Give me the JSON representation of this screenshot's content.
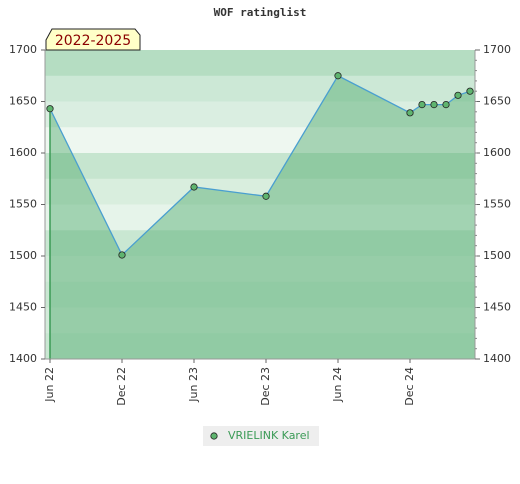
{
  "chart_data": {
    "type": "line",
    "title": "WOF ratinglist",
    "annotation": "2022-2025",
    "x": [
      "2022-06",
      "2022-12",
      "2023-06",
      "2023-12",
      "2024-06",
      "2024-12",
      "2025-01",
      "2025-02",
      "2025-03",
      "2025-04",
      "2025-05"
    ],
    "series": [
      {
        "name": "VRIELINK Karel",
        "color": "#4a9fd0",
        "values": [
          1643,
          1501,
          1567,
          1558,
          1675,
          1639,
          1647,
          1647,
          1647,
          1656,
          1660
        ]
      }
    ],
    "xlim": [
      "2022-06",
      "2025-05"
    ],
    "xticks": [
      {
        "value": "2022-06",
        "label": "Jun 22"
      },
      {
        "value": "2022-12",
        "label": "Dec 22"
      },
      {
        "value": "2023-06",
        "label": "Jun 23"
      },
      {
        "value": "2023-12",
        "label": "Dec 23"
      },
      {
        "value": "2024-06",
        "label": "Jun 24"
      },
      {
        "value": "2024-12",
        "label": "Dec 24"
      }
    ],
    "ylim": [
      1400,
      1700
    ],
    "yticks": [
      1400,
      1450,
      1500,
      1550,
      1600,
      1650,
      1700
    ],
    "y2lim": [
      1400,
      1700
    ],
    "y2ticks": [
      1400,
      1450,
      1500,
      1550,
      1600,
      1650,
      1700
    ],
    "legend": "bottom"
  }
}
